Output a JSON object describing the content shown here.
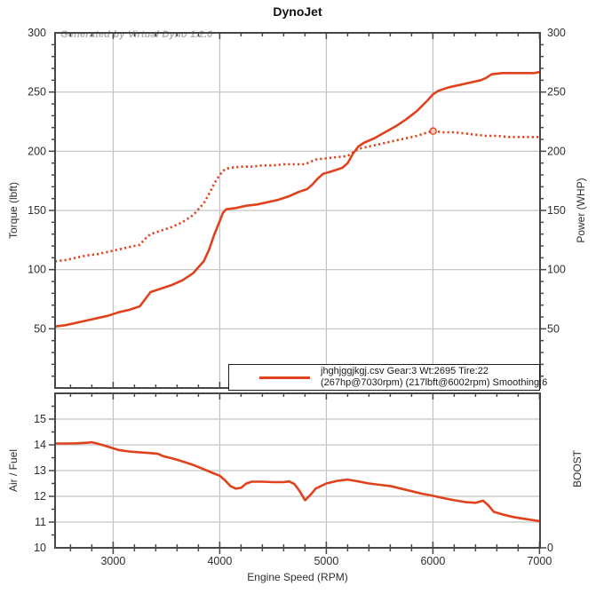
{
  "title": "DynoJet",
  "watermark": "Generated by Virtual Dyno 1.2.0",
  "colors": {
    "line": "#df421c",
    "marker_fill": "#f6cabb",
    "grid": "#c3c3c3",
    "axis": "#474747",
    "text": "#2e2e2e"
  },
  "legend": {
    "line1": "jhghjggjkgj.csv Gear:3 Wt:2695 Tire:22",
    "line2": "(267hp@7030rpm) (217lbft@6002rpm) Smoothing:6"
  },
  "chart_data": [
    {
      "type": "line",
      "title": "DynoJet",
      "xlabel": "Engine Speed (RPM)",
      "ylabel_left": "Torque (lbft)",
      "ylabel_right": "Power (WHP)",
      "x_range": [
        2455,
        7005
      ],
      "y_range": [
        0,
        300
      ],
      "x_ticks": [
        3000,
        4000,
        5000,
        6000,
        7000
      ],
      "y_ticks": [
        50,
        100,
        150,
        200,
        250,
        300
      ],
      "grid": true,
      "legend_position": "bottom-right-inside",
      "peak_power": "267hp@7030rpm",
      "peak_torque": "217lbft@6002rpm",
      "series": [
        {
          "name": "power_whp",
          "style": "solid",
          "points": [
            [
              2455,
              52
            ],
            [
              2550,
              53
            ],
            [
              2650,
              55
            ],
            [
              2750,
              57
            ],
            [
              2850,
              59
            ],
            [
              2950,
              61
            ],
            [
              3050,
              64
            ],
            [
              3150,
              66
            ],
            [
              3250,
              69
            ],
            [
              3300,
              75
            ],
            [
              3350,
              81
            ],
            [
              3450,
              84
            ],
            [
              3550,
              87
            ],
            [
              3650,
              91
            ],
            [
              3750,
              97
            ],
            [
              3850,
              107
            ],
            [
              3900,
              117
            ],
            [
              3950,
              130
            ],
            [
              4000,
              141
            ],
            [
              4030,
              148
            ],
            [
              4060,
              151
            ],
            [
              4150,
              152
            ],
            [
              4250,
              154
            ],
            [
              4350,
              155
            ],
            [
              4450,
              157
            ],
            [
              4550,
              159
            ],
            [
              4650,
              162
            ],
            [
              4750,
              166
            ],
            [
              4820,
              168
            ],
            [
              4870,
              172
            ],
            [
              4920,
              177
            ],
            [
              4970,
              181
            ],
            [
              5050,
              183
            ],
            [
              5150,
              186
            ],
            [
              5200,
              190
            ],
            [
              5250,
              198
            ],
            [
              5300,
              204
            ],
            [
              5350,
              207
            ],
            [
              5450,
              211
            ],
            [
              5550,
              216
            ],
            [
              5650,
              221
            ],
            [
              5750,
              227
            ],
            [
              5850,
              234
            ],
            [
              5950,
              243
            ],
            [
              6000,
              248
            ],
            [
              6050,
              251
            ],
            [
              6150,
              254
            ],
            [
              6250,
              256
            ],
            [
              6350,
              258
            ],
            [
              6450,
              260
            ],
            [
              6500,
              262
            ],
            [
              6550,
              265
            ],
            [
              6650,
              266
            ],
            [
              6750,
              266
            ],
            [
              6850,
              266
            ],
            [
              6950,
              266
            ],
            [
              7005,
              267
            ]
          ]
        },
        {
          "name": "torque_lbft",
          "style": "dotted",
          "peak_marker": [
            6002,
            217
          ],
          "points": [
            [
              2455,
              107
            ],
            [
              2550,
              108
            ],
            [
              2650,
              110
            ],
            [
              2750,
              112
            ],
            [
              2850,
              113
            ],
            [
              2950,
              115
            ],
            [
              3050,
              117
            ],
            [
              3150,
              119
            ],
            [
              3250,
              121
            ],
            [
              3300,
              126
            ],
            [
              3350,
              130
            ],
            [
              3450,
              133
            ],
            [
              3550,
              136
            ],
            [
              3650,
              140
            ],
            [
              3750,
              146
            ],
            [
              3850,
              156
            ],
            [
              3900,
              164
            ],
            [
              3950,
              173
            ],
            [
              4000,
              180
            ],
            [
              4050,
              185
            ],
            [
              4100,
              186
            ],
            [
              4200,
              187
            ],
            [
              4300,
              187
            ],
            [
              4400,
              188
            ],
            [
              4500,
              188
            ],
            [
              4600,
              189
            ],
            [
              4700,
              189
            ],
            [
              4800,
              189
            ],
            [
              4850,
              191
            ],
            [
              4900,
              193
            ],
            [
              5000,
              194
            ],
            [
              5100,
              195
            ],
            [
              5200,
              196
            ],
            [
              5250,
              199
            ],
            [
              5300,
              202
            ],
            [
              5350,
              203
            ],
            [
              5450,
              205
            ],
            [
              5550,
              207
            ],
            [
              5650,
              209
            ],
            [
              5750,
              211
            ],
            [
              5850,
              213
            ],
            [
              5950,
              216
            ],
            [
              6002,
              217
            ],
            [
              6100,
              216
            ],
            [
              6200,
              216
            ],
            [
              6300,
              215
            ],
            [
              6400,
              214
            ],
            [
              6500,
              213
            ],
            [
              6600,
              213
            ],
            [
              6700,
              212
            ],
            [
              6800,
              212
            ],
            [
              6900,
              212
            ],
            [
              7005,
              212
            ]
          ]
        }
      ]
    },
    {
      "type": "line",
      "xlabel": "Engine Speed (RPM)",
      "ylabel_left": "Air / Fuel",
      "ylabel_right": "BOOST",
      "x_range": [
        2455,
        7005
      ],
      "y_range": [
        10,
        16
      ],
      "x_ticks": [
        3000,
        4000,
        5000,
        6000,
        7000
      ],
      "y_ticks_left": [
        10,
        11,
        12,
        13,
        14,
        15
      ],
      "y_ticks_right": [
        0
      ],
      "grid": true,
      "series": [
        {
          "name": "air_fuel",
          "style": "solid",
          "points": [
            [
              2455,
              14.05
            ],
            [
              2550,
              14.05
            ],
            [
              2650,
              14.06
            ],
            [
              2750,
              14.08
            ],
            [
              2800,
              14.1
            ],
            [
              2850,
              14.05
            ],
            [
              2950,
              13.93
            ],
            [
              3050,
              13.8
            ],
            [
              3150,
              13.74
            ],
            [
              3250,
              13.71
            ],
            [
              3350,
              13.68
            ],
            [
              3420,
              13.65
            ],
            [
              3470,
              13.56
            ],
            [
              3550,
              13.48
            ],
            [
              3650,
              13.36
            ],
            [
              3750,
              13.22
            ],
            [
              3850,
              13.05
            ],
            [
              3950,
              12.88
            ],
            [
              4000,
              12.8
            ],
            [
              4050,
              12.62
            ],
            [
              4100,
              12.4
            ],
            [
              4150,
              12.3
            ],
            [
              4200,
              12.33
            ],
            [
              4250,
              12.5
            ],
            [
              4300,
              12.57
            ],
            [
              4400,
              12.57
            ],
            [
              4500,
              12.55
            ],
            [
              4600,
              12.55
            ],
            [
              4650,
              12.58
            ],
            [
              4700,
              12.48
            ],
            [
              4750,
              12.2
            ],
            [
              4800,
              11.85
            ],
            [
              4850,
              12.05
            ],
            [
              4900,
              12.3
            ],
            [
              5000,
              12.5
            ],
            [
              5100,
              12.6
            ],
            [
              5200,
              12.65
            ],
            [
              5300,
              12.58
            ],
            [
              5400,
              12.5
            ],
            [
              5500,
              12.45
            ],
            [
              5600,
              12.4
            ],
            [
              5700,
              12.3
            ],
            [
              5800,
              12.2
            ],
            [
              5900,
              12.1
            ],
            [
              6000,
              12.02
            ],
            [
              6100,
              11.93
            ],
            [
              6200,
              11.85
            ],
            [
              6300,
              11.78
            ],
            [
              6400,
              11.75
            ],
            [
              6470,
              11.83
            ],
            [
              6520,
              11.65
            ],
            [
              6570,
              11.4
            ],
            [
              6650,
              11.3
            ],
            [
              6750,
              11.2
            ],
            [
              6850,
              11.13
            ],
            [
              6950,
              11.07
            ],
            [
              7005,
              11.03
            ]
          ]
        }
      ]
    }
  ]
}
